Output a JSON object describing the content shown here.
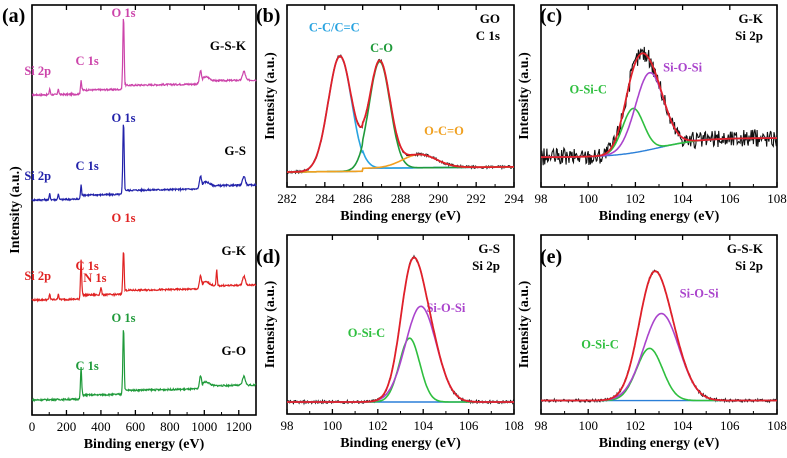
{
  "chart_data": [
    {
      "panel": "(a)",
      "type": "line",
      "xlabel": "Binding energy (eV)",
      "ylabel": "Intensity (a.u.)",
      "xlim": [
        0,
        1300
      ],
      "xticks": [
        0,
        200,
        400,
        600,
        800,
        1000,
        1200
      ],
      "grid": false,
      "series": [
        {
          "name": "G-S-K",
          "color": "#cc44aa",
          "annotations": [
            {
              "text": "O 1s",
              "x": 531
            },
            {
              "text": "C 1s",
              "x": 285
            },
            {
              "text": "Si 2p",
              "x": 103
            }
          ]
        },
        {
          "name": "G-S",
          "color": "#2222aa",
          "annotations": [
            {
              "text": "O 1s",
              "x": 531
            },
            {
              "text": "C 1s",
              "x": 285
            },
            {
              "text": "Si 2p",
              "x": 103
            }
          ]
        },
        {
          "name": "G-K",
          "color": "#e02222",
          "annotations": [
            {
              "text": "O 1s",
              "x": 531
            },
            {
              "text": "C 1s",
              "x": 285
            },
            {
              "text": "N 1s",
              "x": 400
            },
            {
              "text": "Si 2p",
              "x": 103
            }
          ]
        },
        {
          "name": "G-O",
          "color": "#1f9a3a",
          "annotations": [
            {
              "text": "O 1s",
              "x": 531
            },
            {
              "text": "C 1s",
              "x": 285
            }
          ]
        }
      ]
    },
    {
      "panel": "(b)",
      "type": "line",
      "title": "GO",
      "subtitle": "C 1s",
      "xlabel": "Binding energy (eV)",
      "ylabel": "Intensity (a.u.)",
      "xlim": [
        282,
        294
      ],
      "xticks": [
        282,
        284,
        286,
        288,
        290,
        292,
        294
      ],
      "components": [
        {
          "name": "C-C/C=C",
          "center": 284.8,
          "color": "#29a3e0"
        },
        {
          "name": "C-O",
          "center": 286.9,
          "color": "#1f9a3a"
        },
        {
          "name": "O-C=O",
          "center": 289.0,
          "color": "#f0a020"
        }
      ]
    },
    {
      "panel": "(c)",
      "type": "line",
      "title": "G-K",
      "subtitle": "Si 2p",
      "xlabel": "Binding energy (eV)",
      "ylabel": "Intensity (a.u.)",
      "xlim": [
        98,
        108
      ],
      "xticks": [
        98,
        100,
        102,
        104,
        106,
        108
      ],
      "components": [
        {
          "name": "O-Si-C",
          "center": 101.9,
          "color": "#2fbf3f"
        },
        {
          "name": "Si-O-Si",
          "center": 102.6,
          "color": "#aa44cc"
        }
      ]
    },
    {
      "panel": "(d)",
      "type": "line",
      "title": "G-S",
      "subtitle": "Si 2p",
      "xlabel": "Binding energy (eV)",
      "ylabel": "Intensity (a.u.)",
      "xlim": [
        98,
        108
      ],
      "xticks": [
        98,
        100,
        102,
        104,
        106,
        108
      ],
      "components": [
        {
          "name": "O-Si-C",
          "center": 103.4,
          "color": "#2fbf3f"
        },
        {
          "name": "Si-O-Si",
          "center": 103.9,
          "color": "#aa44cc"
        }
      ]
    },
    {
      "panel": "(e)",
      "type": "line",
      "title": "G-S-K",
      "subtitle": "Si 2p",
      "xlabel": "Binding energy (eV)",
      "ylabel": "Intensity (a.u.)",
      "xlim": [
        98,
        108
      ],
      "xticks": [
        98,
        100,
        102,
        104,
        106,
        108
      ],
      "components": [
        {
          "name": "O-Si-C",
          "center": 102.6,
          "color": "#2fbf3f"
        },
        {
          "name": "Si-O-Si",
          "center": 103.1,
          "color": "#aa44cc"
        }
      ]
    }
  ]
}
